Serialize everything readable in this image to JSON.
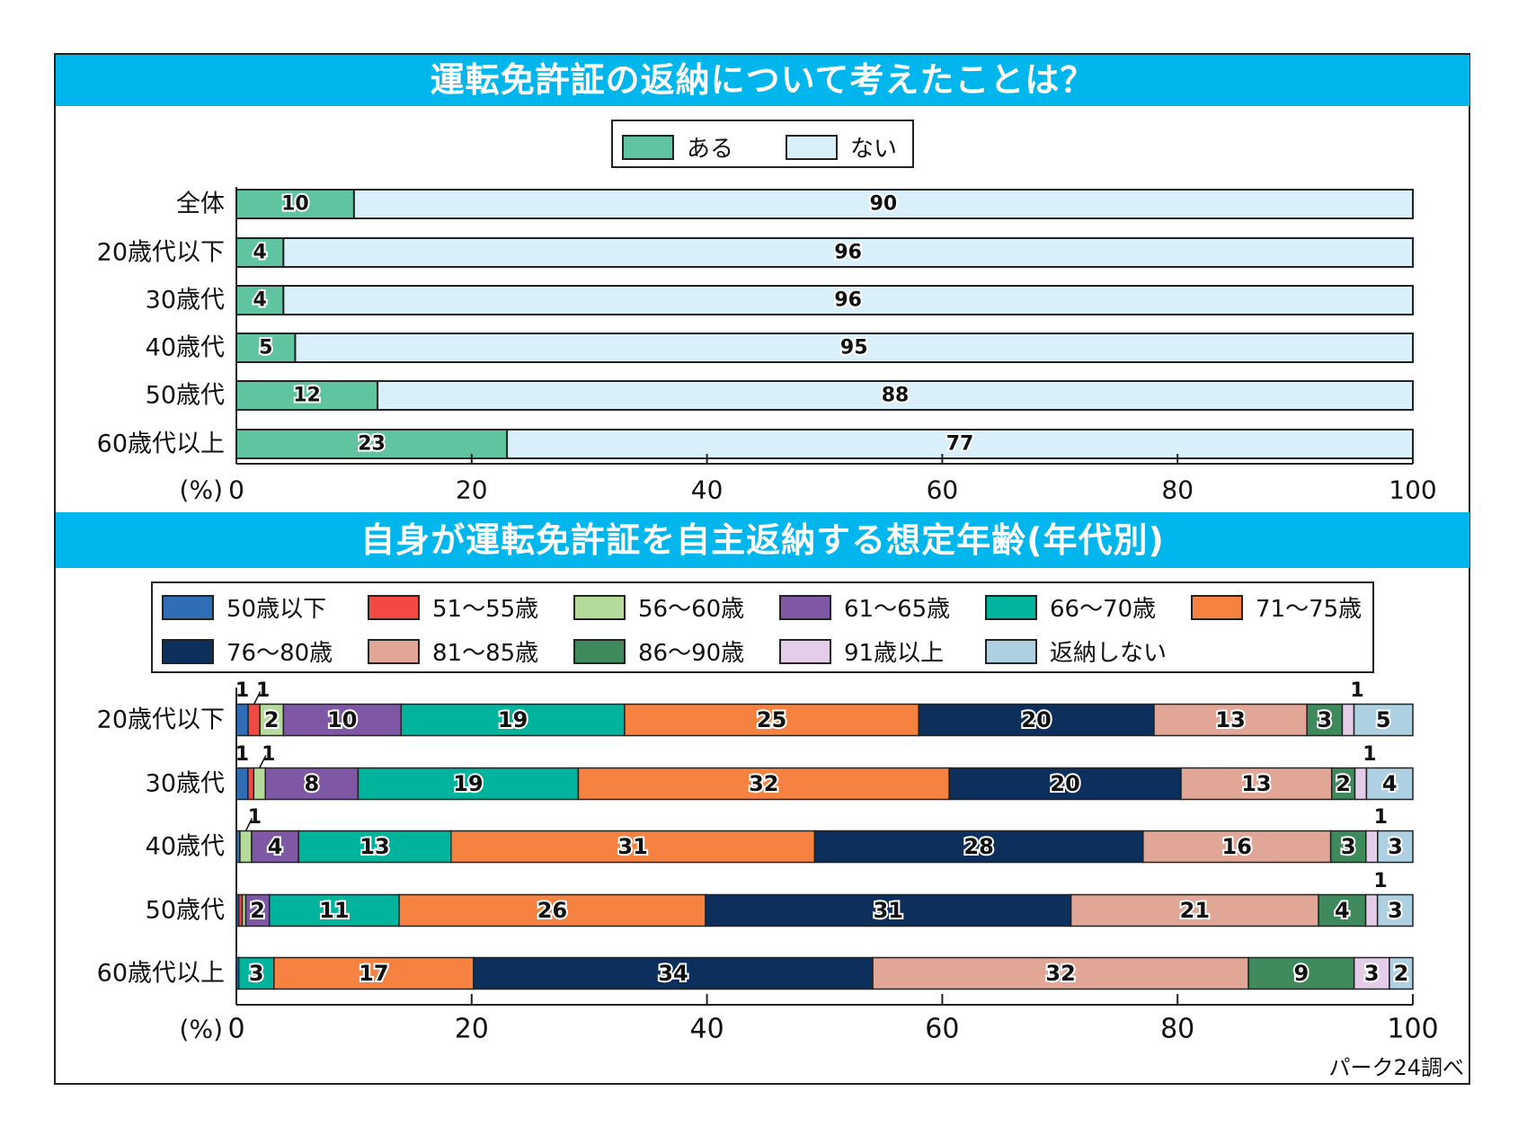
{
  "chart_data": [
    {
      "type": "bar",
      "orientation": "horizontal",
      "stacked": true,
      "title": "運転免許証の返納について考えたことは？",
      "categories": [
        "全体",
        "20歳代以下",
        "30歳代",
        "40歳代",
        "50歳代",
        "60歳代以上"
      ],
      "series": [
        {
          "name": "ある",
          "color": "#5fc49f",
          "values": [
            10,
            4,
            4,
            5,
            12,
            23
          ]
        },
        {
          "name": "ない",
          "color": "#d9eff9",
          "values": [
            90,
            96,
            96,
            95,
            88,
            77
          ]
        }
      ],
      "xlabel": "(%)",
      "xlim": [
        0,
        100
      ],
      "xticks": [
        "0",
        "20",
        "40",
        "60",
        "80",
        "100"
      ],
      "legend": "top-center",
      "grid": false
    },
    {
      "type": "bar",
      "orientation": "horizontal",
      "stacked": true,
      "title": "自身が運転免許証を自主返納する想定年齢(年代別)",
      "categories": [
        "20歳代以下",
        "30歳代",
        "40歳代",
        "50歳代",
        "60歳代以上"
      ],
      "series": [
        {
          "name": "50歳以下",
          "color": "#2f6db5",
          "values": [
            1,
            1,
            0.3,
            0.2,
            0.2
          ]
        },
        {
          "name": "51〜55歳",
          "color": "#f04a42",
          "values": [
            1,
            0.5,
            0,
            0.3,
            0
          ]
        },
        {
          "name": "56〜60歳",
          "color": "#b5db9a",
          "values": [
            2,
            1,
            1,
            0.3,
            0
          ]
        },
        {
          "name": "61〜65歳",
          "color": "#7e57a5",
          "values": [
            10,
            8,
            4,
            2,
            0
          ]
        },
        {
          "name": "66〜70歳",
          "color": "#00b39c",
          "values": [
            19,
            19,
            13,
            11,
            3
          ]
        },
        {
          "name": "71〜75歳",
          "color": "#f68242",
          "values": [
            25,
            32,
            31,
            26,
            17
          ]
        },
        {
          "name": "76〜80歳",
          "color": "#0d2f5c",
          "values": [
            20,
            20,
            28,
            31,
            34
          ]
        },
        {
          "name": "81〜85歳",
          "color": "#e2a696",
          "values": [
            13,
            13,
            16,
            21,
            32
          ]
        },
        {
          "name": "86〜90歳",
          "color": "#3e8a5c",
          "values": [
            3,
            2,
            3,
            4,
            9
          ]
        },
        {
          "name": "91歳以上",
          "color": "#e3cde8",
          "values": [
            1,
            1,
            1,
            1,
            3
          ]
        },
        {
          "name": "返納しない",
          "color": "#aed0e3",
          "values": [
            5,
            4,
            3,
            3,
            2
          ]
        }
      ],
      "labels": [
        [
          "1",
          "1",
          "2",
          "10",
          "19",
          "25",
          "20",
          "13",
          "3",
          "1",
          "5"
        ],
        [
          "1",
          "",
          "1",
          "8",
          "19",
          "32",
          "20",
          "13",
          "2",
          "1",
          "4"
        ],
        [
          "",
          "",
          "1",
          "4",
          "13",
          "31",
          "28",
          "16",
          "3",
          "1",
          "3"
        ],
        [
          "",
          "",
          "",
          "2",
          "11",
          "26",
          "31",
          "21",
          "4",
          "1",
          "3"
        ],
        [
          "",
          "",
          "",
          "",
          "3",
          "17",
          "34",
          "32",
          "9",
          "3",
          "2"
        ]
      ],
      "xlabel": "(%)",
      "xlim": [
        0,
        100
      ],
      "xticks": [
        "0",
        "20",
        "40",
        "60",
        "80",
        "100"
      ],
      "legend": "top",
      "grid": false
    }
  ],
  "header": {
    "title1": "運転免許証の返納について考えたことは？",
    "title2": "自身が運転免許証を自主返納する想定年齢(年代別)"
  },
  "legend1": [
    {
      "label": "ある",
      "color": "#5fc49f"
    },
    {
      "label": "ない",
      "color": "#d9eff9"
    }
  ],
  "source": "パーク24調べ"
}
